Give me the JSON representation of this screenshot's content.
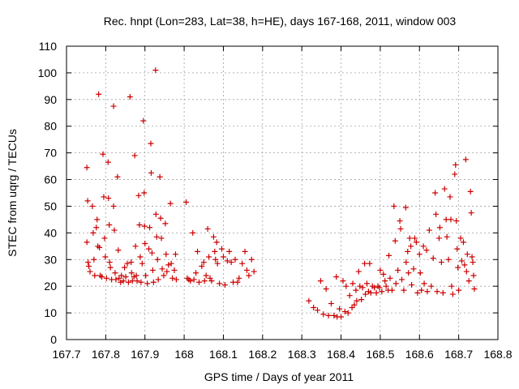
{
  "chart_data": {
    "type": "scatter",
    "title": "Rec. hnpt (Lon=283, Lat=38, h=HE), days 167-168, 2011, window 003",
    "xlabel": "GPS time / Days of year 2011",
    "ylabel": "STEC from uqrg / TECUs",
    "xlim": [
      167.7,
      168.8
    ],
    "ylim": [
      0,
      110
    ],
    "xticks": [
      167.7,
      167.8,
      167.9,
      168.0,
      168.1,
      168.2,
      168.3,
      168.4,
      168.5,
      168.6,
      168.7,
      168.8
    ],
    "xtick_labels": [
      "167.7",
      "167.8",
      "167.9",
      "168",
      "168.1",
      "168.2",
      "168.3",
      "168.4",
      "168.5",
      "168.6",
      "168.7",
      "168.8"
    ],
    "yticks": [
      0,
      10,
      20,
      30,
      40,
      50,
      60,
      70,
      80,
      90,
      100,
      110
    ],
    "ytick_labels": [
      "0",
      "10",
      "20",
      "30",
      "40",
      "50",
      "60",
      "70",
      "80",
      "90",
      "100",
      "110"
    ],
    "grid": true,
    "marker": "+",
    "color": "#cc0000",
    "points": [
      [
        167.752,
        64.5
      ],
      [
        167.754,
        52
      ],
      [
        167.752,
        36.5
      ],
      [
        167.755,
        29
      ],
      [
        167.757,
        27.5
      ],
      [
        167.76,
        25.5
      ],
      [
        167.766,
        50
      ],
      [
        167.768,
        40
      ],
      [
        167.77,
        30
      ],
      [
        167.772,
        24
      ],
      [
        167.776,
        42
      ],
      [
        167.778,
        45
      ],
      [
        167.78,
        35
      ],
      [
        167.782,
        92
      ],
      [
        167.784,
        34.5
      ],
      [
        167.786,
        24
      ],
      [
        167.79,
        23.5
      ],
      [
        167.793,
        69.5
      ],
      [
        167.795,
        53.5
      ],
      [
        167.797,
        38
      ],
      [
        167.799,
        31
      ],
      [
        167.802,
        23
      ],
      [
        167.806,
        66.5
      ],
      [
        167.807,
        53
      ],
      [
        167.809,
        43
      ],
      [
        167.81,
        29
      ],
      [
        167.812,
        27
      ],
      [
        167.815,
        22.5
      ],
      [
        167.82,
        87.5
      ],
      [
        167.82,
        50
      ],
      [
        167.822,
        41
      ],
      [
        167.824,
        25
      ],
      [
        167.826,
        22.5
      ],
      [
        167.83,
        61
      ],
      [
        167.832,
        33.5
      ],
      [
        167.834,
        23
      ],
      [
        167.838,
        21.5
      ],
      [
        167.84,
        24
      ],
      [
        167.845,
        22
      ],
      [
        167.848,
        27
      ],
      [
        167.851,
        23.5
      ],
      [
        167.855,
        28.5
      ],
      [
        167.858,
        21.5
      ],
      [
        167.862,
        91
      ],
      [
        167.865,
        29
      ],
      [
        167.866,
        25
      ],
      [
        167.868,
        22
      ],
      [
        167.872,
        23.5
      ],
      [
        167.874,
        69
      ],
      [
        167.876,
        35
      ],
      [
        167.878,
        24
      ],
      [
        167.88,
        22
      ],
      [
        167.884,
        54
      ],
      [
        167.886,
        43
      ],
      [
        167.888,
        31
      ],
      [
        167.89,
        21.5
      ],
      [
        167.893,
        28.5
      ],
      [
        167.896,
        82
      ],
      [
        167.898,
        55
      ],
      [
        167.899,
        42.5
      ],
      [
        167.9,
        36
      ],
      [
        167.902,
        24
      ],
      [
        167.906,
        21
      ],
      [
        167.91,
        34
      ],
      [
        167.912,
        42
      ],
      [
        167.915,
        73.5
      ],
      [
        167.916,
        62.5
      ],
      [
        167.918,
        32.5
      ],
      [
        167.92,
        26
      ],
      [
        167.922,
        21.5
      ],
      [
        167.927,
        101
      ],
      [
        167.928,
        47
      ],
      [
        167.93,
        38.5
      ],
      [
        167.932,
        30
      ],
      [
        167.934,
        22.5
      ],
      [
        167.938,
        61
      ],
      [
        167.94,
        45.5
      ],
      [
        167.942,
        38
      ],
      [
        167.944,
        26.5
      ],
      [
        167.948,
        24
      ],
      [
        167.952,
        43.5
      ],
      [
        167.954,
        32
      ],
      [
        167.956,
        25.5
      ],
      [
        167.96,
        28
      ],
      [
        167.965,
        51
      ],
      [
        167.967,
        28.5
      ],
      [
        167.97,
        23
      ],
      [
        167.975,
        26
      ],
      [
        167.978,
        32
      ],
      [
        167.98,
        22.5
      ],
      [
        168.005,
        51.5
      ],
      [
        168.008,
        23
      ],
      [
        168.012,
        22.5
      ],
      [
        168.016,
        22
      ],
      [
        168.022,
        40
      ],
      [
        168.025,
        22.5
      ],
      [
        168.03,
        25
      ],
      [
        168.034,
        33
      ],
      [
        168.038,
        21.5
      ],
      [
        168.045,
        27.5
      ],
      [
        168.05,
        29
      ],
      [
        168.052,
        22
      ],
      [
        168.056,
        24
      ],
      [
        168.06,
        41.5
      ],
      [
        168.063,
        31
      ],
      [
        168.066,
        23
      ],
      [
        168.07,
        22
      ],
      [
        168.075,
        38.5
      ],
      [
        168.078,
        33
      ],
      [
        168.08,
        30
      ],
      [
        168.083,
        36.5
      ],
      [
        168.085,
        28.5
      ],
      [
        168.09,
        21
      ],
      [
        168.096,
        34
      ],
      [
        168.1,
        31
      ],
      [
        168.104,
        20.5
      ],
      [
        168.11,
        29.5
      ],
      [
        168.115,
        33
      ],
      [
        168.12,
        29
      ],
      [
        168.125,
        21.5
      ],
      [
        168.13,
        30
      ],
      [
        168.136,
        21.5
      ],
      [
        168.14,
        23
      ],
      [
        168.148,
        28.5
      ],
      [
        168.155,
        33
      ],
      [
        168.16,
        26
      ],
      [
        168.165,
        24
      ],
      [
        168.172,
        30
      ],
      [
        168.178,
        25.5
      ],
      [
        168.318,
        14.5
      ],
      [
        168.33,
        12
      ],
      [
        168.34,
        11
      ],
      [
        168.348,
        22
      ],
      [
        168.355,
        9.5
      ],
      [
        168.362,
        19
      ],
      [
        168.368,
        9
      ],
      [
        168.375,
        13.5
      ],
      [
        168.382,
        9
      ],
      [
        168.388,
        23.5
      ],
      [
        168.39,
        8.5
      ],
      [
        168.396,
        11.5
      ],
      [
        168.4,
        8.5
      ],
      [
        168.405,
        22
      ],
      [
        168.41,
        10.5
      ],
      [
        168.413,
        20
      ],
      [
        168.418,
        10
      ],
      [
        168.422,
        16.5
      ],
      [
        168.428,
        12
      ],
      [
        168.43,
        21
      ],
      [
        168.434,
        13
      ],
      [
        168.438,
        18.5
      ],
      [
        168.44,
        14.5
      ],
      [
        168.445,
        25.5
      ],
      [
        168.448,
        20
      ],
      [
        168.452,
        15
      ],
      [
        168.455,
        19.5
      ],
      [
        168.46,
        28.5
      ],
      [
        168.462,
        17
      ],
      [
        168.466,
        21
      ],
      [
        168.47,
        18
      ],
      [
        168.473,
        28.5
      ],
      [
        168.476,
        17.5
      ],
      [
        168.48,
        20
      ],
      [
        168.485,
        19.5
      ],
      [
        168.49,
        17.5
      ],
      [
        168.494,
        20
      ],
      [
        168.498,
        19.5
      ],
      [
        168.5,
        26
      ],
      [
        168.504,
        18
      ],
      [
        168.508,
        24.5
      ],
      [
        168.512,
        22
      ],
      [
        168.515,
        20
      ],
      [
        168.52,
        18.5
      ],
      [
        168.522,
        31.5
      ],
      [
        168.525,
        23
      ],
      [
        168.53,
        18.5
      ],
      [
        168.535,
        50
      ],
      [
        168.538,
        37
      ],
      [
        168.54,
        21
      ],
      [
        168.545,
        26
      ],
      [
        168.55,
        44.5
      ],
      [
        168.552,
        41.5
      ],
      [
        168.555,
        22.5
      ],
      [
        168.56,
        18.5
      ],
      [
        168.565,
        49.5
      ],
      [
        168.566,
        29
      ],
      [
        168.57,
        33
      ],
      [
        168.572,
        25
      ],
      [
        168.575,
        38
      ],
      [
        168.578,
        35
      ],
      [
        168.58,
        20.5
      ],
      [
        168.585,
        26.5
      ],
      [
        168.588,
        38
      ],
      [
        168.592,
        36.5
      ],
      [
        168.595,
        17.5
      ],
      [
        168.6,
        32
      ],
      [
        168.602,
        25
      ],
      [
        168.605,
        18.5
      ],
      [
        168.61,
        35
      ],
      [
        168.612,
        21
      ],
      [
        168.618,
        33.5
      ],
      [
        168.62,
        18
      ],
      [
        168.625,
        41
      ],
      [
        168.63,
        20
      ],
      [
        168.635,
        30.5
      ],
      [
        168.64,
        55
      ],
      [
        168.642,
        47
      ],
      [
        168.645,
        18
      ],
      [
        168.65,
        38
      ],
      [
        168.652,
        42
      ],
      [
        168.656,
        29
      ],
      [
        168.66,
        17.5
      ],
      [
        168.664,
        56.5
      ],
      [
        168.668,
        45
      ],
      [
        168.67,
        38.5
      ],
      [
        168.674,
        30
      ],
      [
        168.678,
        53.5
      ],
      [
        168.68,
        45
      ],
      [
        168.682,
        20
      ],
      [
        168.685,
        17
      ],
      [
        168.69,
        62
      ],
      [
        168.692,
        65.5
      ],
      [
        168.694,
        44.5
      ],
      [
        168.696,
        34
      ],
      [
        168.698,
        27
      ],
      [
        168.7,
        18.5
      ],
      [
        168.705,
        38
      ],
      [
        168.708,
        29.5
      ],
      [
        168.712,
        36.5
      ],
      [
        168.715,
        28
      ],
      [
        168.718,
        67.5
      ],
      [
        168.72,
        25.5
      ],
      [
        168.722,
        32
      ],
      [
        168.726,
        22
      ],
      [
        168.73,
        55.5
      ],
      [
        168.732,
        47.5
      ],
      [
        168.734,
        31
      ],
      [
        168.736,
        29
      ],
      [
        168.738,
        24
      ],
      [
        168.74,
        19
      ]
    ]
  }
}
